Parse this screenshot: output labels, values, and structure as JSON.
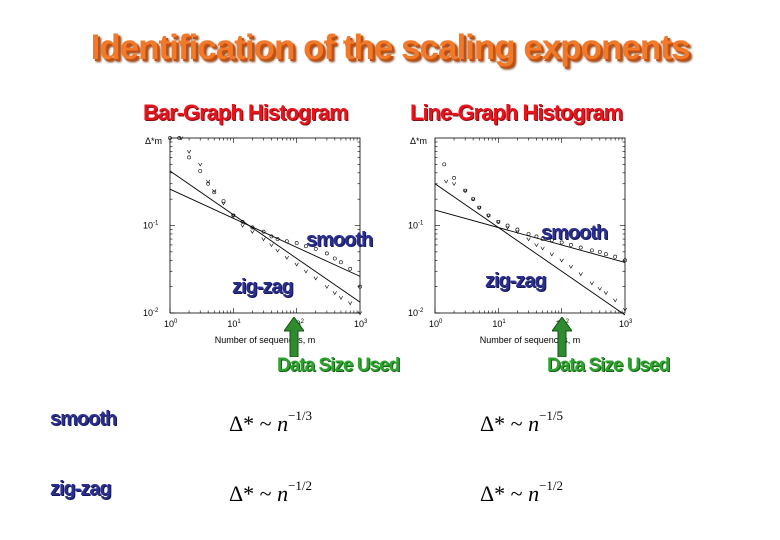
{
  "slide": {
    "title": "Identification of the scaling exponents"
  },
  "panels": [
    {
      "title": "Bar-Graph Histogram",
      "smooth_label": "smooth",
      "zigzag_label": "zig-zag",
      "data_size_label": "Data Size Used"
    },
    {
      "title": "Line-Graph Histogram",
      "smooth_label": "smooth",
      "zigzag_label": "zig-zag",
      "data_size_label": "Data Size Used"
    }
  ],
  "rows": [
    {
      "label": "smooth",
      "bar_formula": {
        "lhs": "Δ* ~ ",
        "base": "n",
        "exp": "−1/3"
      },
      "line_formula": {
        "lhs": "Δ* ~ ",
        "base": "n",
        "exp": "−1/5"
      }
    },
    {
      "label": "zig-zag",
      "bar_formula": {
        "lhs": "Δ* ~ ",
        "base": "n",
        "exp": "−1/2"
      },
      "line_formula": {
        "lhs": "Δ* ~ ",
        "base": "n",
        "exp": "−1/2"
      }
    }
  ],
  "colors": {
    "title": "#f07a2a",
    "panel_title": "#e8141c",
    "blue_label": "#2a2e8c",
    "green_label": "#2ea32e",
    "arrow": "#2e8b2e"
  },
  "chart_data": [
    {
      "type": "scatter",
      "title": "",
      "xlabel": "Number of sequences, m",
      "ylabel": "Δ*m",
      "xscale": "log",
      "yscale": "log",
      "xlim": [
        1,
        1000
      ],
      "ylim": [
        0.01,
        1
      ],
      "xticks": [
        "10^0",
        "10^1",
        "10^2",
        "10^3"
      ],
      "yticks": [
        "10^-2",
        "10^-1"
      ],
      "series": [
        {
          "marker": "o",
          "x": [
            1,
            1.4,
            2,
            3,
            4,
            5,
            7,
            10,
            14,
            20,
            30,
            40,
            50,
            70,
            100,
            140,
            200,
            300,
            400,
            500,
            700,
            1000
          ],
          "y": [
            1,
            1,
            0.6,
            0.42,
            0.3,
            0.24,
            0.19,
            0.13,
            0.11,
            0.095,
            0.085,
            0.075,
            0.07,
            0.066,
            0.063,
            0.058,
            0.054,
            0.048,
            0.042,
            0.038,
            0.032,
            0.02
          ]
        },
        {
          "marker": "v",
          "x": [
            1.5,
            2,
            3,
            4,
            5,
            7,
            10,
            14,
            20,
            30,
            40,
            50,
            70,
            100,
            140,
            200,
            300,
            400,
            500,
            700,
            1000
          ],
          "y": [
            1,
            0.7,
            0.5,
            0.32,
            0.25,
            0.18,
            0.13,
            0.1,
            0.085,
            0.07,
            0.06,
            0.052,
            0.043,
            0.036,
            0.03,
            0.025,
            0.02,
            0.017,
            0.015,
            0.013,
            0.01
          ]
        },
        {
          "fit": true,
          "x": [
            1,
            1000
          ],
          "y": [
            0.26,
            0.0262
          ]
        },
        {
          "fit": true,
          "x": [
            1,
            1000
          ],
          "y": [
            0.42,
            0.0133
          ]
        }
      ]
    },
    {
      "type": "scatter",
      "title": "",
      "xlabel": "Number of sequences, m",
      "ylabel": "Δ*m",
      "xscale": "log",
      "yscale": "log",
      "xlim": [
        1,
        1000
      ],
      "ylim": [
        0.01,
        1
      ],
      "xticks": [
        "10^0",
        "10^1",
        "10^2",
        "10^3"
      ],
      "yticks": [
        "10^-2",
        "10^-1"
      ],
      "series": [
        {
          "marker": "o",
          "x": [
            1.4,
            2,
            3,
            4,
            5,
            7,
            10,
            14,
            20,
            30,
            40,
            50,
            70,
            100,
            140,
            200,
            300,
            400,
            500,
            700,
            1000
          ],
          "y": [
            0.5,
            0.35,
            0.25,
            0.2,
            0.16,
            0.13,
            0.11,
            0.1,
            0.09,
            0.08,
            0.075,
            0.07,
            0.068,
            0.064,
            0.06,
            0.056,
            0.052,
            0.05,
            0.047,
            0.044,
            0.04
          ]
        },
        {
          "marker": "v",
          "x": [
            1.5,
            2,
            3,
            4,
            5,
            7,
            10,
            14,
            20,
            30,
            40,
            50,
            70,
            100,
            140,
            200,
            300,
            400,
            500,
            700,
            1000
          ],
          "y": [
            0.32,
            0.3,
            0.25,
            0.2,
            0.16,
            0.13,
            0.11,
            0.095,
            0.085,
            0.07,
            0.06,
            0.055,
            0.047,
            0.04,
            0.034,
            0.028,
            0.022,
            0.019,
            0.017,
            0.014,
            0.011
          ]
        },
        {
          "fit": true,
          "x": [
            1,
            1000
          ],
          "y": [
            0.15,
            0.0378
          ]
        },
        {
          "fit": true,
          "x": [
            1,
            1000
          ],
          "y": [
            0.3,
            0.0095
          ]
        }
      ]
    }
  ]
}
